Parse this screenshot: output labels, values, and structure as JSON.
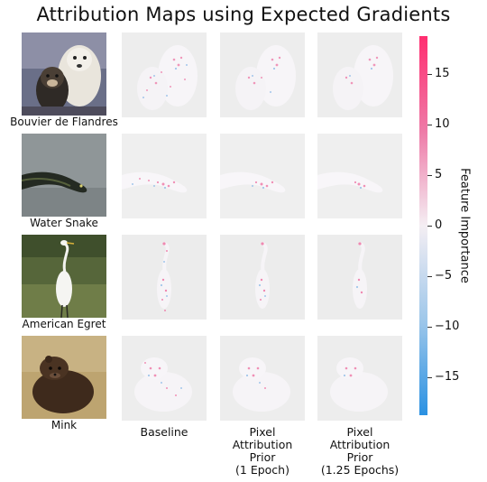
{
  "title": "Attribution Maps using Expected Gradients",
  "rows": [
    {
      "label": "Bouvier de Flandres"
    },
    {
      "label": "Water Snake"
    },
    {
      "label": "American Egret"
    },
    {
      "label": "Mink"
    }
  ],
  "columns": [
    {
      "label_lines": [
        "Baseline"
      ]
    },
    {
      "label_lines": [
        "Pixel",
        "Attribution",
        "Prior",
        "(1 Epoch)"
      ]
    },
    {
      "label_lines": [
        "Pixel",
        "Attribution",
        "Prior",
        "(1.25 Epochs)"
      ]
    }
  ],
  "colorbar": {
    "label": "Feature Importance",
    "ticks": [
      "15",
      "10",
      "5",
      "0",
      "−5",
      "−10",
      "−15"
    ],
    "top_color": "#ff2e70",
    "mid_color": "#f4eef3",
    "bottom_color": "#2a91e2"
  }
}
